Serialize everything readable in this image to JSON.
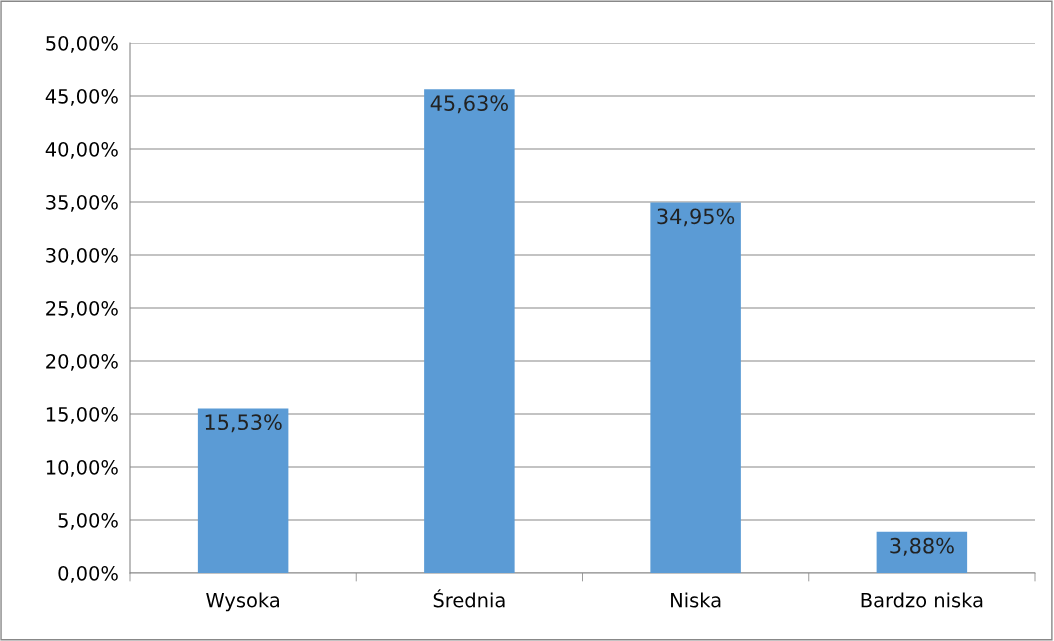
{
  "chart_data": {
    "type": "bar",
    "categories": [
      "Wysoka",
      "Średnia",
      "Niska",
      "Bardzo niska"
    ],
    "values": [
      15.53,
      45.63,
      34.95,
      3.88
    ],
    "color": "#5b9bd5",
    "value_labels": [
      "15,53%",
      "45,63%",
      "34,95%",
      "3,88%"
    ],
    "ylim": [
      0,
      50
    ],
    "yticks": [
      {
        "value": 0,
        "label": "0,00%"
      },
      {
        "value": 5,
        "label": "5,00%"
      },
      {
        "value": 10,
        "label": "10,00%"
      },
      {
        "value": 15,
        "label": "15,00%"
      },
      {
        "value": 20,
        "label": "20,00%"
      },
      {
        "value": 25,
        "label": "25,00%"
      },
      {
        "value": 30,
        "label": "30,00%"
      },
      {
        "value": 35,
        "label": "35,00%"
      },
      {
        "value": 40,
        "label": "40,00%"
      },
      {
        "value": 45,
        "label": "45,00%"
      },
      {
        "value": 50,
        "label": "50,00%"
      }
    ],
    "grid": "y"
  }
}
